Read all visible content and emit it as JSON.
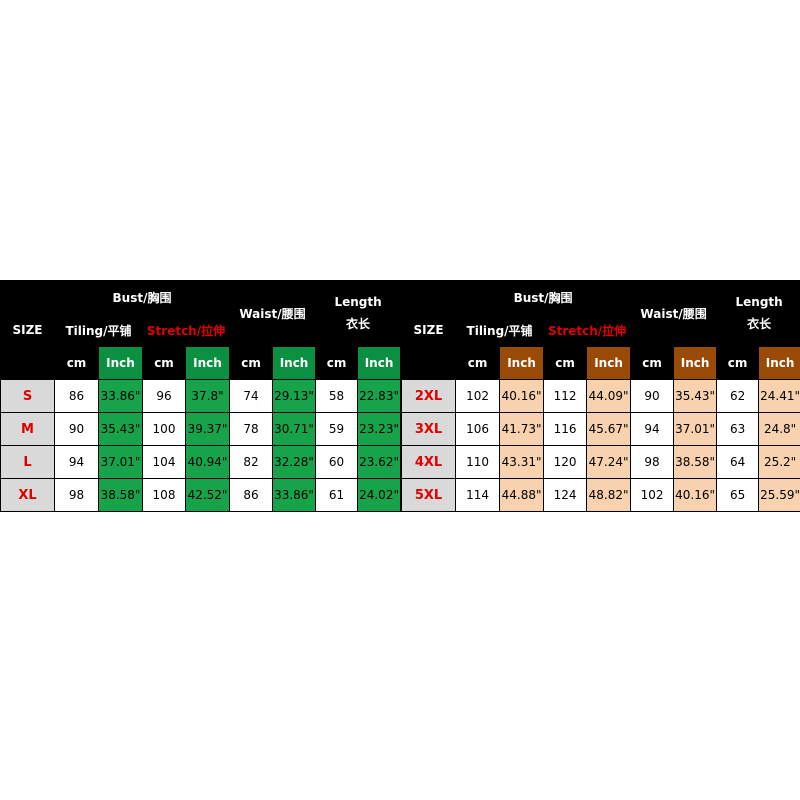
{
  "tables": [
    {
      "header": {
        "size": "SIZE",
        "bust": "Bust/胸围",
        "waist": "Waist/腰围",
        "length": "Length",
        "length_cn": "衣长",
        "tiling": "Tiling/平铺",
        "stretch": "Stretch/拉伸",
        "cm": "cm",
        "inch": "Inch"
      },
      "rows": [
        [
          "S",
          "86",
          "33.86\"",
          "96",
          "37.8\"",
          "74",
          "29.13\"",
          "58",
          "22.83\""
        ],
        [
          "M",
          "90",
          "35.43\"",
          "100",
          "39.37\"",
          "78",
          "30.71\"",
          "59",
          "23.23\""
        ],
        [
          "L",
          "94",
          "37.01\"",
          "104",
          "40.94\"",
          "82",
          "32.28\"",
          "60",
          "23.62\""
        ],
        [
          "XL",
          "98",
          "38.58\"",
          "108",
          "42.52\"",
          "86",
          "33.86\"",
          "61",
          "24.02\""
        ]
      ]
    },
    {
      "header": {
        "size": "SIZE",
        "bust": "Bust/胸围",
        "waist": "Waist/腰围",
        "length": "Length",
        "length_cn": "衣长",
        "tiling": "Tiling/平铺",
        "stretch": "Stretch/拉伸",
        "cm": "cm",
        "inch": "Inch"
      },
      "rows": [
        [
          "2XL",
          "102",
          "40.16\"",
          "112",
          "44.09\"",
          "90",
          "35.43\"",
          "62",
          "24.41\""
        ],
        [
          "3XL",
          "106",
          "41.73\"",
          "116",
          "45.67\"",
          "94",
          "37.01\"",
          "63",
          "24.8\""
        ],
        [
          "4XL",
          "110",
          "43.31\"",
          "120",
          "47.24\"",
          "98",
          "38.58\"",
          "64",
          "25.2\""
        ],
        [
          "5XL",
          "114",
          "44.88\"",
          "124",
          "48.82\"",
          "102",
          "40.16\"",
          "65",
          "25.59\""
        ]
      ]
    }
  ]
}
